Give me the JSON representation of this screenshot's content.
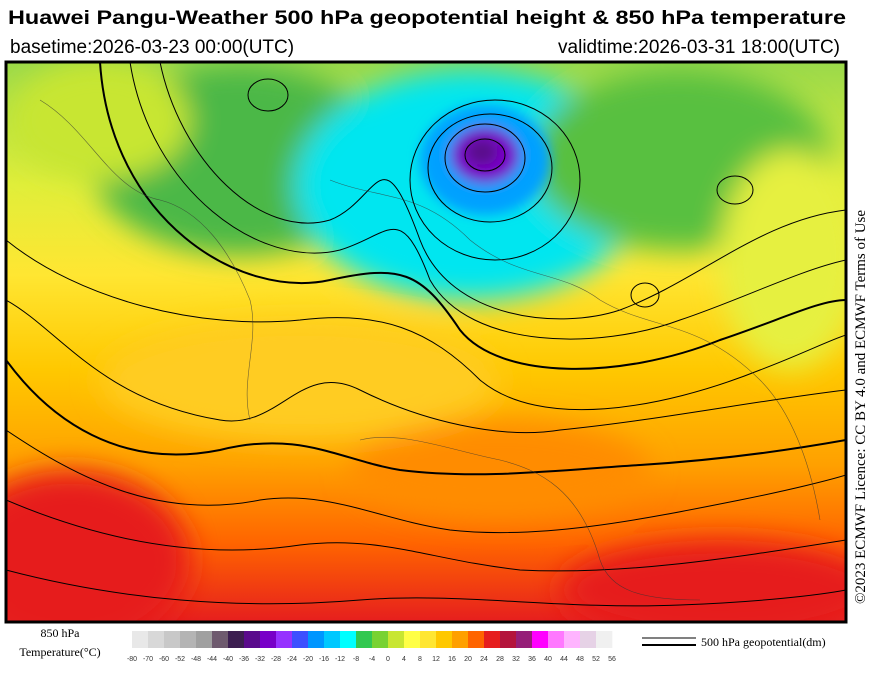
{
  "header": {
    "title": "Huawei Pangu-Weather 500 hPa geopotential height & 850 hPa temperature",
    "basetime": "basetime:2026-03-23 00:00(UTC)",
    "validtime": "validtime:2026-03-31 18:00(UTC)"
  },
  "license": "©2023 ECMWF Licence: CC BY 4.0 and ECMWF Terms of Use",
  "colorbar": {
    "label_line1": "850 hPa",
    "label_line2": "Temperature(°C)",
    "ticks": [
      -80,
      -70,
      -60,
      -52,
      -48,
      -44,
      -40,
      -36,
      -32,
      -28,
      -24,
      -20,
      -16,
      -12,
      -8,
      -4,
      0,
      4,
      8,
      12,
      16,
      20,
      24,
      28,
      32,
      36,
      40,
      44,
      48,
      52,
      56
    ],
    "colors": [
      "#e8e8e8",
      "#d8d8d8",
      "#c8c8c8",
      "#b4b4b4",
      "#a0a0a0",
      "#6e5a6e",
      "#3c1e50",
      "#5a0a8c",
      "#7800c8",
      "#9632ff",
      "#3c50ff",
      "#0096ff",
      "#00c8ff",
      "#00ffff",
      "#32c850",
      "#78d232",
      "#c8e632",
      "#ffff46",
      "#ffe632",
      "#ffc800",
      "#ffa000",
      "#ff6400",
      "#e61e1e",
      "#b4143c",
      "#961e78",
      "#ff00ff",
      "#ff78ff",
      "#ffb4ff",
      "#e6d2e6",
      "#f0f0f0"
    ]
  },
  "contour_legend": "500 hPa geopotential(dm)"
}
